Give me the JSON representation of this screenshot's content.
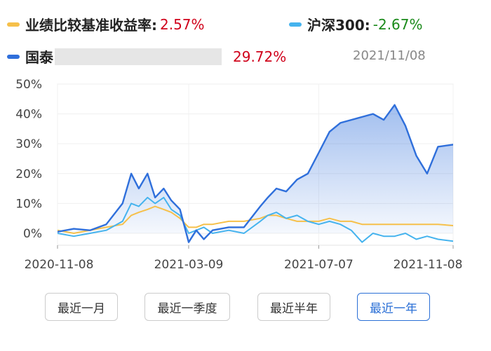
{
  "legend": {
    "benchmark_label": "业绩比较基准收益率:",
    "benchmark_value": "2.57%",
    "hs300_label": "沪深300:",
    "hs300_value": "-2.67%",
    "fund_label": "国泰",
    "fund_value": "29.72%",
    "date": "2021/11/08"
  },
  "colors": {
    "fund": "#2f6fdb",
    "hs300": "#45b3ee",
    "benchmark": "#f6c04a",
    "positive": "#d0021b",
    "negative": "#1a8a1a",
    "accent": "#2a6fd6"
  },
  "buttons": [
    {
      "label": "最近一月",
      "active": false
    },
    {
      "label": "最近一季度",
      "active": false
    },
    {
      "label": "最近半年",
      "active": false
    },
    {
      "label": "最近一年",
      "active": true
    }
  ],
  "chart_data": {
    "type": "line",
    "ylim": [
      -4,
      50
    ],
    "y_ticks": [
      "50%",
      "40%",
      "30%",
      "20%",
      "10%",
      "0%"
    ],
    "y_tick_values": [
      50,
      40,
      30,
      20,
      10,
      0
    ],
    "x_ticks": [
      "2020-11-08",
      "2021-03-09",
      "2021-07-07",
      "2021-11-08"
    ],
    "x_tick_dates": [
      "2020-11-08",
      "2021-03-09",
      "2021-07-07",
      "2021-11-08"
    ],
    "x_range": [
      "2020-11-08",
      "2021-11-08"
    ],
    "series": [
      {
        "name": "国泰",
        "x": [
          "2020-11-08",
          "2020-11-23",
          "2020-12-08",
          "2020-12-23",
          "2021-01-07",
          "2021-01-15",
          "2021-01-22",
          "2021-01-30",
          "2021-02-06",
          "2021-02-14",
          "2021-02-21",
          "2021-03-01",
          "2021-03-09",
          "2021-03-16",
          "2021-03-23",
          "2021-03-31",
          "2021-04-15",
          "2021-04-29",
          "2021-05-14",
          "2021-05-21",
          "2021-05-29",
          "2021-06-07",
          "2021-06-17",
          "2021-06-27",
          "2021-07-07",
          "2021-07-17",
          "2021-07-27",
          "2021-08-06",
          "2021-08-16",
          "2021-08-26",
          "2021-09-05",
          "2021-09-15",
          "2021-09-25",
          "2021-10-05",
          "2021-10-15",
          "2021-10-25",
          "2021-11-08"
        ],
        "values": [
          0.5,
          1.5,
          1,
          3,
          10,
          20,
          15,
          20,
          12,
          15,
          11,
          8,
          -3,
          1,
          -2,
          1,
          2,
          2,
          9,
          12,
          15,
          14,
          18,
          20,
          27,
          34,
          37,
          38,
          39,
          40,
          38,
          43,
          36,
          26,
          20,
          29,
          29.72
        ]
      },
      {
        "name": "沪深300",
        "x": [
          "2020-11-08",
          "2020-11-23",
          "2020-12-08",
          "2020-12-23",
          "2021-01-07",
          "2021-01-15",
          "2021-01-22",
          "2021-01-30",
          "2021-02-06",
          "2021-02-14",
          "2021-02-21",
          "2021-03-01",
          "2021-03-09",
          "2021-03-16",
          "2021-03-23",
          "2021-03-31",
          "2021-04-15",
          "2021-04-29",
          "2021-05-14",
          "2021-05-21",
          "2021-05-29",
          "2021-06-07",
          "2021-06-17",
          "2021-06-27",
          "2021-07-07",
          "2021-07-17",
          "2021-07-27",
          "2021-08-06",
          "2021-08-16",
          "2021-08-26",
          "2021-09-05",
          "2021-09-15",
          "2021-09-25",
          "2021-10-05",
          "2021-10-15",
          "2021-10-25",
          "2021-11-08"
        ],
        "values": [
          0,
          -1,
          0,
          1,
          4,
          10,
          9,
          12,
          10,
          12,
          8,
          6,
          0,
          1,
          2,
          0,
          1,
          0,
          4,
          6,
          7,
          5,
          6,
          4,
          3,
          4,
          3,
          1,
          -3,
          0,
          -1,
          -1,
          0,
          -2,
          -1,
          -2,
          -2.67
        ]
      },
      {
        "name": "业绩比较基准收益率",
        "x": [
          "2020-11-08",
          "2020-11-23",
          "2020-12-08",
          "2020-12-23",
          "2021-01-07",
          "2021-01-15",
          "2021-01-22",
          "2021-01-30",
          "2021-02-06",
          "2021-02-14",
          "2021-02-21",
          "2021-03-01",
          "2021-03-09",
          "2021-03-16",
          "2021-03-23",
          "2021-03-31",
          "2021-04-15",
          "2021-04-29",
          "2021-05-14",
          "2021-05-21",
          "2021-05-29",
          "2021-06-07",
          "2021-06-17",
          "2021-06-27",
          "2021-07-07",
          "2021-07-17",
          "2021-07-27",
          "2021-08-06",
          "2021-08-16",
          "2021-08-26",
          "2021-09-05",
          "2021-09-15",
          "2021-09-25",
          "2021-10-05",
          "2021-10-15",
          "2021-10-25",
          "2021-11-08"
        ],
        "values": [
          1,
          0,
          1,
          2,
          3,
          6,
          7,
          8,
          9,
          8,
          7,
          5,
          2,
          2,
          3,
          3,
          4,
          4,
          5,
          6,
          6,
          5,
          4,
          4,
          4,
          5,
          4,
          4,
          3,
          3,
          3,
          3,
          3,
          3,
          3,
          3,
          2.57
        ]
      }
    ]
  }
}
